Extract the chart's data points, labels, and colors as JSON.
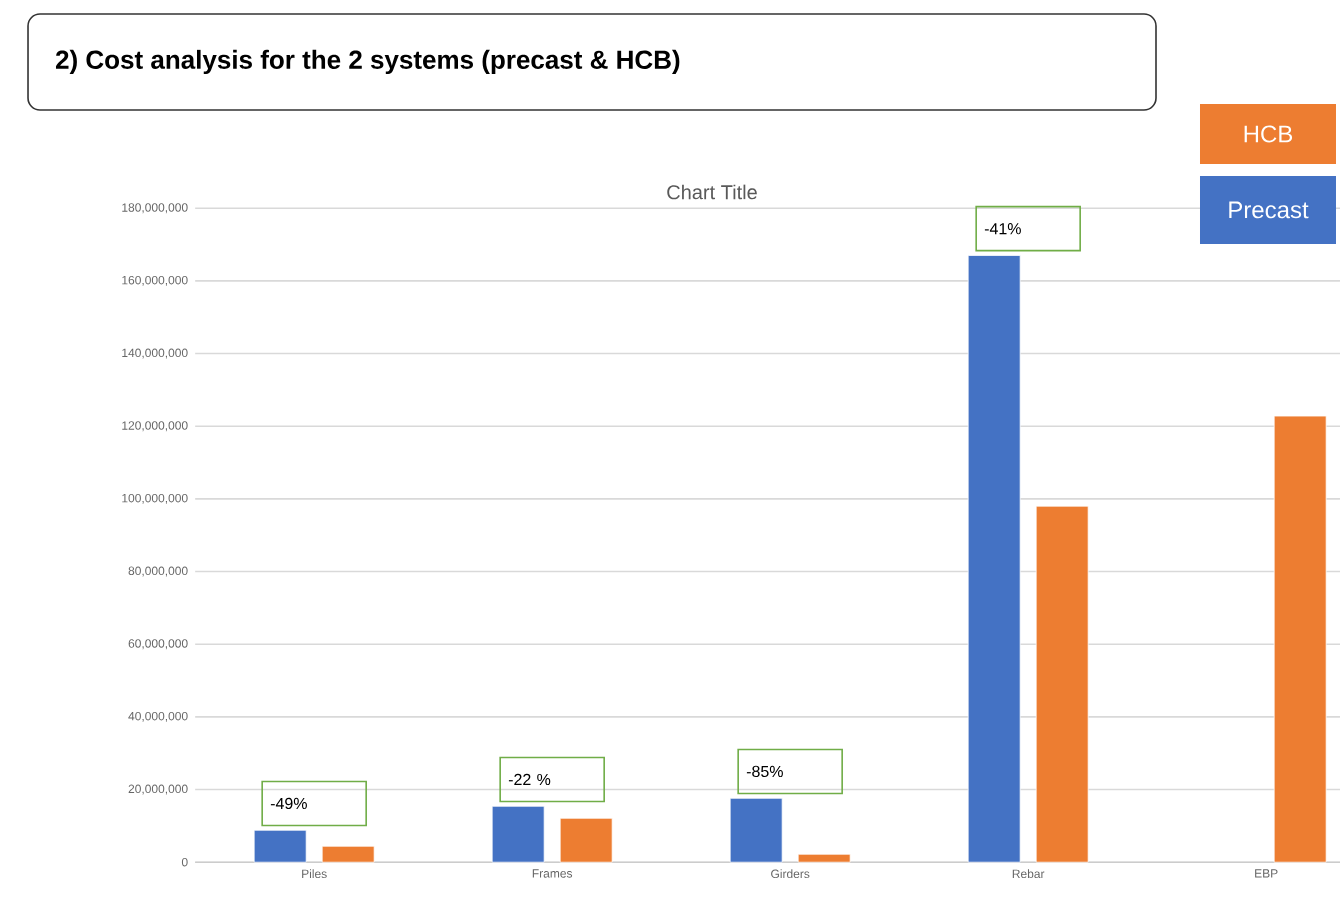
{
  "chart_data": {
    "type": "bar",
    "title": "2) Cost analysis for the 2 systems (precast & HCB)",
    "subtitle": "Chart Title",
    "categories": [
      "Piles",
      "Frames",
      "Girders",
      "Rebar",
      "EBP"
    ],
    "series": [
      {
        "name": "Precast",
        "color": "#4472c4",
        "values": [
          8800000,
          15400000,
          17600000,
          167000000,
          null
        ]
      },
      {
        "name": "HCB",
        "color": "#ed7d31",
        "values": [
          4400000,
          12100000,
          2200000,
          98000000,
          122800000
        ]
      }
    ],
    "ylim": [
      0,
      180000000
    ],
    "yticks": [
      {
        "value": 0,
        "label": "0"
      },
      {
        "value": 20000000,
        "label": "20,000,000"
      },
      {
        "value": 40000000,
        "label": "40,000,000"
      },
      {
        "value": 60000000,
        "label": "60,000,000"
      },
      {
        "value": 80000000,
        "label": "80,000,000"
      },
      {
        "value": 100000000,
        "label": "100,000,000"
      },
      {
        "value": 120000000,
        "label": "120,000,000"
      },
      {
        "value": 140000000,
        "label": "140,000,000"
      },
      {
        "value": 160000000,
        "label": "160,000,000"
      },
      {
        "value": 180000000,
        "label": "180,000,000"
      }
    ],
    "annotations": [
      "-49%",
      "-22 %",
      "-85%",
      "-41%"
    ],
    "grid": "y",
    "legend": "top right"
  }
}
